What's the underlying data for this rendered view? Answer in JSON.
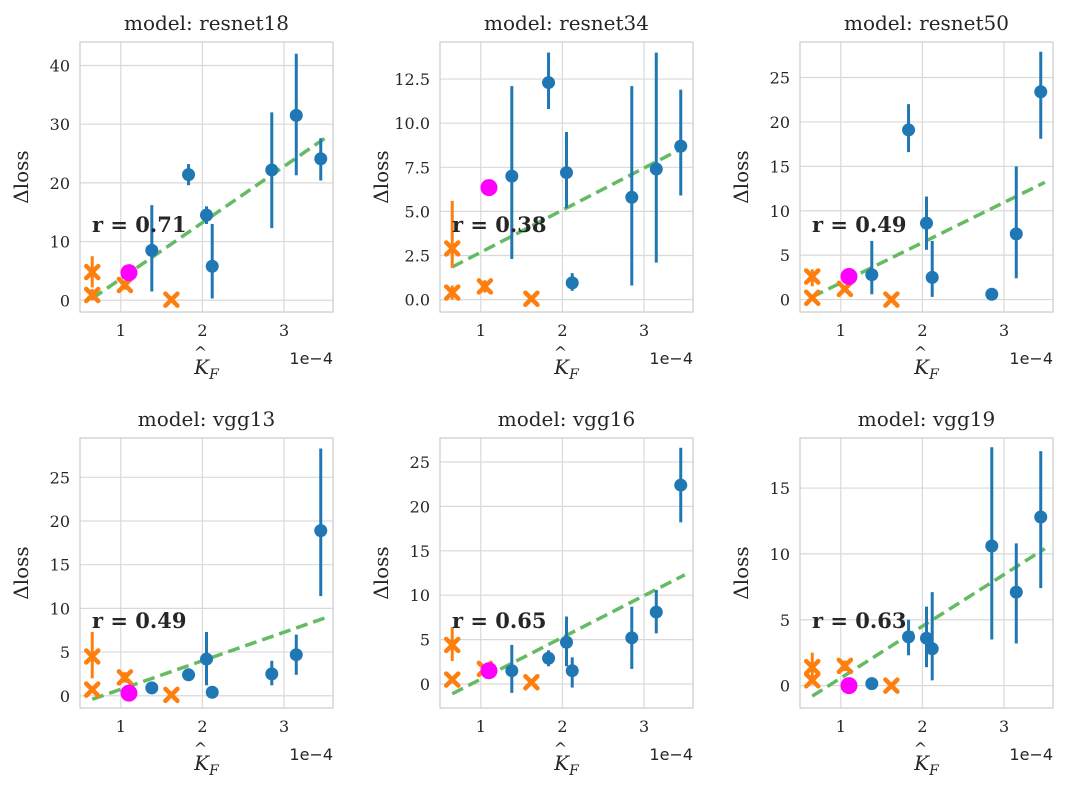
{
  "figure": {
    "offset_text": "1e−4",
    "xlabel_main": "K",
    "xlabel_sub": "F",
    "xlabel_hat": "^",
    "ylabel": "Δloss"
  },
  "colors": {
    "blue": "#1f77b4",
    "orange": "#ff7f0e",
    "magenta": "#ff00ff",
    "fit": "#5cb85c",
    "grid": "#d9d9d9"
  },
  "chart_data": [
    {
      "type": "scatter",
      "title": "model: resnet18",
      "r_label": "r = 0.71",
      "xlabel": "K̂_F",
      "ylabel": "Δloss",
      "xlim": [
        0.5,
        3.6
      ],
      "ylim": [
        -2,
        44
      ],
      "xticks": [
        1,
        2,
        3
      ],
      "yticks": [
        0,
        10,
        20,
        30,
        40
      ],
      "ytick_labels": [
        "0",
        "10",
        "20",
        "30",
        "40"
      ],
      "x_offset": "1e−4",
      "blue": [
        [
          1.38,
          8.5,
          1.5,
          16.2
        ],
        [
          1.83,
          21.4,
          19.6,
          23.2
        ],
        [
          2.05,
          14.5,
          13.0,
          16.0
        ],
        [
          2.12,
          5.8,
          0.3,
          13.0
        ],
        [
          2.85,
          22.2,
          12.3,
          32.0
        ],
        [
          3.15,
          31.5,
          21.3,
          42.0
        ],
        [
          3.45,
          24.1,
          20.4,
          27.6
        ]
      ],
      "orange": [
        [
          0.65,
          0.9,
          0.0,
          1.9
        ],
        [
          0.65,
          4.8,
          2.2,
          7.5
        ],
        [
          1.05,
          2.6,
          1.8,
          3.4
        ],
        [
          1.62,
          0.1,
          0.0,
          0.3
        ]
      ],
      "magenta": [
        [
          1.1,
          4.7
        ]
      ],
      "fit": [
        [
          0.65,
          0.3
        ],
        [
          3.5,
          27.6
        ]
      ]
    },
    {
      "type": "scatter",
      "title": "model: resnet34",
      "r_label": "r = 0.38",
      "xlabel": "K̂_F",
      "ylabel": "Δloss",
      "xlim": [
        0.5,
        3.6
      ],
      "ylim": [
        -0.7,
        14.6
      ],
      "xticks": [
        1,
        2,
        3
      ],
      "yticks": [
        0,
        2.5,
        5,
        7.5,
        10,
        12.5
      ],
      "ytick_labels": [
        "0.0",
        "2.5",
        "5.0",
        "7.5",
        "10.0",
        "12.5"
      ],
      "x_offset": "1e−4",
      "blue": [
        [
          1.38,
          7.0,
          2.3,
          12.1
        ],
        [
          1.83,
          12.3,
          10.8,
          14.0
        ],
        [
          2.05,
          7.2,
          5.2,
          9.5
        ],
        [
          2.12,
          0.95,
          0.5,
          1.5
        ],
        [
          2.85,
          5.8,
          0.8,
          12.1
        ],
        [
          3.15,
          7.4,
          2.1,
          14.0
        ],
        [
          3.45,
          8.7,
          5.9,
          11.9
        ]
      ],
      "orange": [
        [
          0.65,
          0.4,
          0.0,
          0.8
        ],
        [
          0.65,
          2.9,
          1.8,
          5.6
        ],
        [
          1.05,
          0.75,
          0.4,
          1.1
        ],
        [
          1.62,
          0.05,
          0.0,
          0.2
        ]
      ],
      "magenta": [
        [
          1.1,
          6.35
        ]
      ],
      "fit": [
        [
          0.65,
          1.85
        ],
        [
          3.5,
          8.65
        ]
      ]
    },
    {
      "type": "scatter",
      "title": "model: resnet50",
      "r_label": "r = 0.49",
      "xlabel": "K̂_F",
      "ylabel": "Δloss",
      "xlim": [
        0.5,
        3.6
      ],
      "ylim": [
        -1.4,
        29
      ],
      "xticks": [
        1,
        2,
        3
      ],
      "yticks": [
        0,
        5,
        10,
        15,
        20,
        25
      ],
      "ytick_labels": [
        "0",
        "5",
        "10",
        "15",
        "20",
        "25"
      ],
      "x_offset": "1e−4",
      "blue": [
        [
          1.38,
          2.8,
          0.6,
          6.6
        ],
        [
          1.83,
          19.1,
          16.6,
          22.0
        ],
        [
          2.05,
          8.6,
          5.6,
          11.6
        ],
        [
          2.12,
          2.5,
          0.3,
          6.6
        ],
        [
          2.85,
          0.6,
          0.3,
          0.9
        ],
        [
          3.15,
          7.4,
          2.4,
          15.0
        ],
        [
          3.45,
          23.4,
          18.1,
          27.9
        ]
      ],
      "orange": [
        [
          0.65,
          0.2,
          0.0,
          0.5
        ],
        [
          0.65,
          2.6,
          1.5,
          3.4
        ],
        [
          1.05,
          1.2,
          0.8,
          1.6
        ],
        [
          1.62,
          0.0,
          0.0,
          0.2
        ]
      ],
      "magenta": [
        [
          1.1,
          2.6
        ]
      ],
      "fit": [
        [
          0.65,
          0.3
        ],
        [
          3.5,
          13.2
        ]
      ]
    },
    {
      "type": "scatter",
      "title": "model: vgg13",
      "r_label": "r = 0.49",
      "xlabel": "K̂_F",
      "ylabel": "Δloss",
      "xlim": [
        0.5,
        3.6
      ],
      "ylim": [
        -1.4,
        29.5
      ],
      "xticks": [
        1,
        2,
        3
      ],
      "yticks": [
        0,
        5,
        10,
        15,
        20,
        25
      ],
      "ytick_labels": [
        "0",
        "5",
        "10",
        "15",
        "20",
        "25"
      ],
      "x_offset": "1e−4",
      "blue": [
        [
          1.38,
          0.9,
          0.7,
          1.1
        ],
        [
          1.83,
          2.4,
          1.8,
          2.9
        ],
        [
          2.05,
          4.2,
          1.2,
          7.3
        ],
        [
          2.12,
          0.4,
          0.2,
          0.6
        ],
        [
          2.85,
          2.5,
          1.2,
          4.0
        ],
        [
          3.15,
          4.7,
          2.4,
          7.0
        ],
        [
          3.45,
          18.9,
          11.4,
          28.3
        ]
      ],
      "orange": [
        [
          0.65,
          0.7,
          0.3,
          1.1
        ],
        [
          0.65,
          4.5,
          2.0,
          7.3
        ],
        [
          1.05,
          2.1,
          1.5,
          2.7
        ],
        [
          1.62,
          0.1,
          0.0,
          0.3
        ]
      ],
      "magenta": [
        [
          1.1,
          0.3
        ]
      ],
      "fit": [
        [
          0.65,
          -0.4
        ],
        [
          3.5,
          8.9
        ]
      ]
    },
    {
      "type": "scatter",
      "title": "model: vgg16",
      "r_label": "r = 0.65",
      "xlabel": "K̂_F",
      "ylabel": "Δloss",
      "xlim": [
        0.5,
        3.6
      ],
      "ylim": [
        -2.7,
        27.7
      ],
      "xticks": [
        1,
        2,
        3
      ],
      "yticks": [
        0,
        5,
        10,
        15,
        20,
        25
      ],
      "ytick_labels": [
        "0",
        "5",
        "10",
        "15",
        "20",
        "25"
      ],
      "x_offset": "1e−4",
      "blue": [
        [
          1.38,
          1.5,
          -1.0,
          4.4
        ],
        [
          1.83,
          2.9,
          2.0,
          3.8
        ],
        [
          2.05,
          4.7,
          2.0,
          7.6
        ],
        [
          2.12,
          1.5,
          -0.4,
          3.0
        ],
        [
          2.85,
          5.2,
          1.7,
          8.7
        ],
        [
          3.15,
          8.1,
          5.7,
          10.6
        ],
        [
          3.45,
          22.4,
          18.2,
          26.6
        ]
      ],
      "orange": [
        [
          0.65,
          0.5,
          0.1,
          0.9
        ],
        [
          0.65,
          4.4,
          2.6,
          6.4
        ],
        [
          1.05,
          1.7,
          1.2,
          2.2
        ],
        [
          1.62,
          0.2,
          0.0,
          0.4
        ]
      ],
      "magenta": [
        [
          1.1,
          1.5
        ]
      ],
      "fit": [
        [
          0.65,
          -1.1
        ],
        [
          3.5,
          12.3
        ]
      ]
    },
    {
      "type": "scatter",
      "title": "model: vgg19",
      "r_label": "r = 0.63",
      "xlabel": "K̂_F",
      "ylabel": "Δloss",
      "xlim": [
        0.5,
        3.6
      ],
      "ylim": [
        -1.7,
        18.8
      ],
      "xticks": [
        1,
        2,
        3
      ],
      "yticks": [
        0,
        5,
        10,
        15
      ],
      "ytick_labels": [
        "0",
        "5",
        "10",
        "15"
      ],
      "x_offset": "1e−4",
      "blue": [
        [
          1.38,
          0.15,
          0.05,
          0.25
        ],
        [
          1.83,
          3.7,
          2.3,
          5.0
        ],
        [
          2.05,
          3.6,
          1.4,
          6.0
        ],
        [
          2.12,
          2.8,
          0.4,
          7.1
        ],
        [
          2.85,
          10.6,
          3.5,
          18.1
        ],
        [
          3.15,
          7.1,
          3.2,
          10.8
        ],
        [
          3.45,
          12.8,
          7.4,
          17.8
        ]
      ],
      "orange": [
        [
          0.65,
          0.4,
          0.1,
          0.8
        ],
        [
          0.65,
          1.4,
          0.3,
          2.5
        ],
        [
          1.05,
          1.5,
          1.1,
          1.9
        ],
        [
          1.62,
          0.0,
          0.0,
          0.2
        ]
      ],
      "magenta": [
        [
          1.1,
          0.0
        ]
      ],
      "fit": [
        [
          0.65,
          -0.8
        ],
        [
          3.5,
          10.4
        ]
      ]
    }
  ]
}
